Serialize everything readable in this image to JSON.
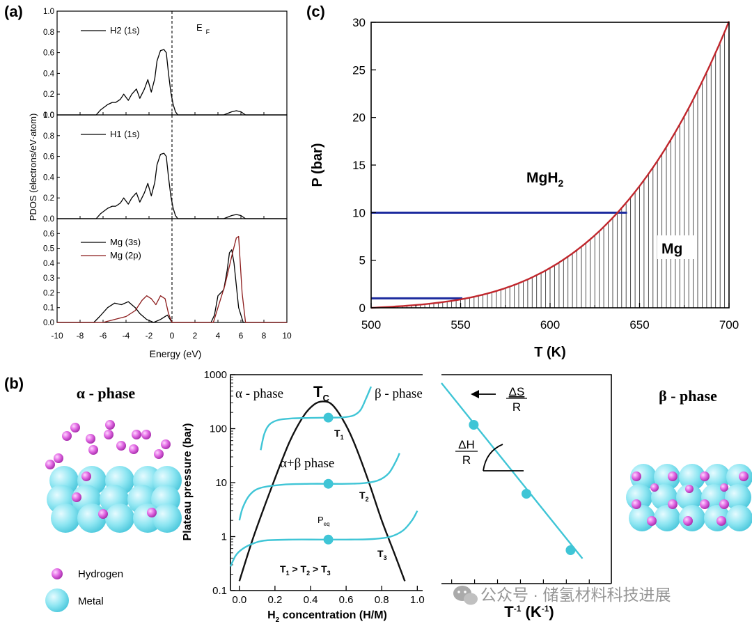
{
  "panel_labels": {
    "a": "(a)",
    "b": "(b)",
    "c": "(c)"
  },
  "watermark": "公众号 · 储氢材料科技进展",
  "chart_data": [
    {
      "id": "a",
      "type": "line",
      "title": "",
      "xlabel": "Energy (eV)",
      "ylabel": "PDOS (electrons/eV·atom)",
      "xlim": [
        -10,
        10
      ],
      "xticks": [
        -10,
        -8,
        -6,
        -4,
        -2,
        0,
        2,
        4,
        6,
        8,
        10
      ],
      "fermi_label": "E",
      "fermi_sub": "F",
      "subplots": [
        {
          "ylim": [
            0,
            1.0
          ],
          "yticks": [
            "0.0",
            "0.2",
            "0.4",
            "0.6",
            "0.8",
            "1.0"
          ],
          "series": [
            {
              "name": "H2 (1s)",
              "color": "#000000",
              "x": [
                -10,
                -6.6,
                -6.2,
                -5.6,
                -5.2,
                -4.9,
                -4.5,
                -4.2,
                -3.8,
                -3.5,
                -3.1,
                -2.8,
                -2.4,
                -2.1,
                -1.8,
                -1.5,
                -1.3,
                -1.0,
                -0.7,
                -0.5,
                -0.3,
                -0.1,
                0.1,
                0.3,
                0.5,
                3.6,
                4.5,
                5.2,
                5.6,
                6.0,
                6.4,
                10
              ],
              "y": [
                0,
                0,
                0.05,
                0.1,
                0.12,
                0.12,
                0.15,
                0.2,
                0.14,
                0.2,
                0.25,
                0.16,
                0.25,
                0.34,
                0.22,
                0.35,
                0.52,
                0.62,
                0.63,
                0.6,
                0.4,
                0.22,
                0.1,
                0.03,
                0,
                0,
                0,
                0.03,
                0.04,
                0.03,
                0,
                0
              ]
            }
          ]
        },
        {
          "ylim": [
            0,
            1.0
          ],
          "yticks": [
            "0.0",
            "0.2",
            "0.4",
            "0.6",
            "0.8",
            "1.0"
          ],
          "series": [
            {
              "name": "H1 (1s)",
              "color": "#000000",
              "x": [
                -10,
                -6.6,
                -6.2,
                -5.6,
                -5.2,
                -4.9,
                -4.5,
                -4.2,
                -3.8,
                -3.5,
                -3.1,
                -2.8,
                -2.4,
                -2.1,
                -1.8,
                -1.5,
                -1.3,
                -1.0,
                -0.7,
                -0.5,
                -0.3,
                -0.1,
                0.1,
                0.3,
                0.5,
                3.6,
                4.5,
                5.2,
                5.6,
                6.0,
                6.4,
                10
              ],
              "y": [
                0,
                0,
                0.05,
                0.1,
                0.12,
                0.12,
                0.15,
                0.2,
                0.14,
                0.2,
                0.25,
                0.16,
                0.25,
                0.34,
                0.22,
                0.35,
                0.52,
                0.62,
                0.63,
                0.6,
                0.4,
                0.22,
                0.1,
                0.03,
                0,
                0,
                0,
                0.03,
                0.04,
                0.03,
                0,
                0
              ]
            }
          ]
        },
        {
          "ylim": [
            0,
            0.7
          ],
          "yticks": [
            "0.0",
            "0.1",
            "0.2",
            "0.3",
            "0.4",
            "0.5",
            "0.6"
          ],
          "series": [
            {
              "name": "Mg (3s)",
              "color": "#000000",
              "x": [
                -10,
                -6.8,
                -6.3,
                -5.6,
                -5.0,
                -4.4,
                -3.8,
                -3.2,
                -2.8,
                -2.2,
                -1.6,
                -1.0,
                -0.4,
                0,
                3.4,
                3.7,
                4.0,
                4.5,
                4.8,
                5.0,
                5.2,
                5.4,
                5.8,
                6.2,
                10
              ],
              "y": [
                0,
                0,
                0.04,
                0.1,
                0.13,
                0.12,
                0.14,
                0.1,
                0.06,
                0.02,
                0.0,
                0.02,
                0.05,
                0,
                0,
                0.05,
                0.18,
                0.22,
                0.35,
                0.47,
                0.49,
                0.4,
                0.1,
                0,
                0
              ]
            },
            {
              "name": "Mg (2p)",
              "color": "#8b1a1a",
              "x": [
                -10,
                -6.0,
                -5.0,
                -4.0,
                -3.2,
                -2.6,
                -2.2,
                -1.8,
                -1.4,
                -1.0,
                -0.6,
                -0.3,
                0,
                3.6,
                4.2,
                4.6,
                5.0,
                5.3,
                5.6,
                5.8,
                6.1,
                6.4,
                10
              ],
              "y": [
                0,
                0,
                0.02,
                0.04,
                0.08,
                0.15,
                0.18,
                0.16,
                0.12,
                0.18,
                0.16,
                0.06,
                0,
                0,
                0.15,
                0.25,
                0.38,
                0.48,
                0.57,
                0.58,
                0.2,
                0,
                0
              ]
            }
          ]
        }
      ]
    },
    {
      "id": "c",
      "type": "area",
      "title": "",
      "xlabel": "T (K)",
      "ylabel": "P (bar)",
      "xlim": [
        500,
        700
      ],
      "ylim": [
        0,
        30
      ],
      "xticks": [
        500,
        550,
        600,
        650,
        700
      ],
      "yticks": [
        0,
        5,
        10,
        15,
        20,
        25,
        30
      ],
      "curve": {
        "name": "equilibrium",
        "color": "#c0262c",
        "a": 1.8,
        "b": 2.8,
        "c": 25.5,
        "n": 3.3
      },
      "hlines": [
        {
          "y": 10,
          "x0": 500,
          "x1": 643,
          "color": "#1b2a9e"
        },
        {
          "y": 1,
          "x0": 500,
          "x1": 551,
          "color": "#1b2a9e"
        }
      ],
      "regions": [
        {
          "label": "MgH",
          "sub": "2",
          "x": 560,
          "y": 13.5
        },
        {
          "label": "Mg",
          "sub": "",
          "x": 655,
          "y": 6.2
        }
      ],
      "hatch_step_K": 2.5
    },
    {
      "id": "b-left",
      "type": "line",
      "title": "",
      "xlabel": "H",
      "xlabel_sub": "2",
      "xlabel_rest": " concentration (H/M)",
      "ylabel": "Plateau pressure (bar)",
      "xlim": [
        -0.05,
        1.03
      ],
      "yscale": "log",
      "ylim": [
        0.1,
        1000
      ],
      "xticks": [
        "0.0",
        "0.2",
        "0.4",
        "0.6",
        "0.8",
        "1.0"
      ],
      "yticks": [
        "0.1",
        "1",
        "10",
        "100",
        "1000"
      ],
      "dome": {
        "color": "#111111",
        "x": [
          0.0,
          0.08,
          0.18,
          0.28,
          0.36,
          0.42,
          0.47,
          0.52,
          0.58,
          0.64,
          0.72,
          0.8,
          0.87,
          0.93
        ],
        "y": [
          0.15,
          1.0,
          8,
          55,
          170,
          280,
          320,
          280,
          150,
          60,
          12,
          2,
          0.5,
          0.15
        ]
      },
      "isotherms": [
        {
          "name": "T1",
          "color": "#3fc5d6",
          "x": [
            0.12,
            0.14,
            0.17,
            0.22,
            0.3,
            0.4,
            0.5,
            0.58,
            0.64,
            0.68,
            0.71,
            0.74
          ],
          "y": [
            40,
            80,
            120,
            145,
            155,
            158,
            160,
            162,
            175,
            220,
            350,
            600
          ]
        },
        {
          "name": "T2",
          "color": "#3fc5d6",
          "x": [
            0.0,
            0.02,
            0.06,
            0.12,
            0.25,
            0.4,
            0.5,
            0.6,
            0.7,
            0.78,
            0.84,
            0.88,
            0.9
          ],
          "y": [
            2,
            3.5,
            6,
            8,
            9.2,
            9.5,
            9.5,
            9.5,
            9.8,
            11,
            15,
            25,
            35
          ]
        },
        {
          "name": "T3",
          "color": "#3fc5d6",
          "x": [
            -0.05,
            -0.02,
            0.02,
            0.08,
            0.15,
            0.3,
            0.45,
            0.6,
            0.75,
            0.85,
            0.92,
            0.97,
            1.0
          ],
          "y": [
            0.28,
            0.45,
            0.6,
            0.75,
            0.85,
            0.88,
            0.88,
            0.88,
            0.9,
            1.0,
            1.3,
            2,
            3
          ]
        }
      ],
      "points": [
        {
          "x": 0.5,
          "y": 160
        },
        {
          "x": 0.5,
          "y": 9.5
        },
        {
          "x": 0.5,
          "y": 0.88
        }
      ],
      "texts": {
        "alpha": "α - phase",
        "beta": "β - phase",
        "tc": "T",
        "tc_sub": "C",
        "mix": "α+β phase",
        "peq": "P",
        "peq_sub": "eq",
        "t1": "T",
        "t1_sub": "1",
        "t2": "T",
        "t2_sub": "2",
        "t3": "T",
        "t3_sub": "3",
        "order": [
          "T",
          "1",
          " > T",
          "2",
          " > T",
          "3"
        ]
      }
    },
    {
      "id": "b-right",
      "type": "line",
      "title": "",
      "xlabel": "T",
      "xlabel_sup": "-1",
      "xlabel_rest": " (K",
      "xlabel_sup2": "-1",
      "xlabel_end": ")",
      "line": {
        "color": "#3fc5d6"
      },
      "points": [
        {
          "x": 0.19,
          "y": 0.76
        },
        {
          "x": 0.5,
          "y": 0.43
        },
        {
          "x": 0.76,
          "y": 0.16
        }
      ],
      "texts": {
        "ds_num": "ΔS",
        "ds_den": "R",
        "dh_num": "ΔH",
        "dh_den": "R"
      }
    }
  ],
  "illustrations": {
    "alpha_label": "α - phase",
    "beta_label": "β - phase",
    "legend": {
      "hydrogen": "Hydrogen",
      "metal": "Metal"
    },
    "colors": {
      "metal": "#7fe3f0",
      "hydrogen": "#d64fd8"
    }
  }
}
